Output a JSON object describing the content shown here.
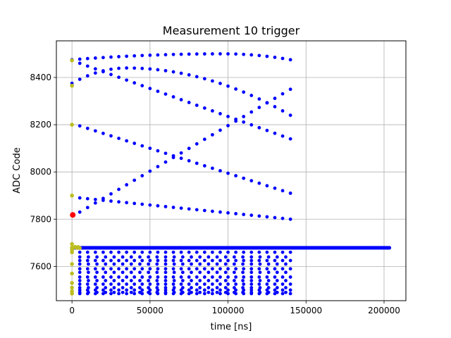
{
  "chart_data": {
    "type": "scatter",
    "title": "Measurement 10 trigger",
    "xlabel": "time [ns]",
    "ylabel": "ADC Code",
    "xlim": [
      -10000,
      214000
    ],
    "ylim": [
      7455,
      8555
    ],
    "grid": true,
    "x_ticks": [
      0,
      50000,
      100000,
      150000,
      200000
    ],
    "x_tick_labels": [
      "0",
      "50000",
      "100000",
      "150000",
      "200000"
    ],
    "y_ticks": [
      7600,
      7800,
      8000,
      8200,
      8400
    ],
    "y_tick_labels": [
      "7600",
      "7800",
      "8000",
      "8200",
      "8400"
    ],
    "series": [
      {
        "color": "#0000ff",
        "marker_radius_hint": "small",
        "description_curves": [
          {
            "kind": "arc",
            "x_start": 0,
            "x_end": 140000,
            "y_start": 8475,
            "y_peak": 8500,
            "x_peak": 97000,
            "y_end": 8475
          },
          {
            "kind": "arc",
            "x_start": 0,
            "x_end": 140000,
            "y_start": 8375,
            "y_peak": 8440,
            "x_peak": 35000,
            "y_end": 8240
          },
          {
            "kind": "line",
            "x_start": 5000,
            "x_end": 140000,
            "y_start": 8460,
            "y_end": 8140
          },
          {
            "kind": "line",
            "x_start": 5000,
            "x_end": 140000,
            "y_start": 8195,
            "y_end": 7910
          },
          {
            "kind": "line",
            "x_start": 5000,
            "x_end": 140000,
            "y_start": 7830,
            "y_end": 8350
          },
          {
            "kind": "line",
            "x_start": 5000,
            "x_end": 140000,
            "y_start": 7890,
            "y_end": 7800
          }
        ],
        "flat_level": 7679,
        "flat_x_end": 204000,
        "lower_levels": [
          7660,
          7640,
          7625,
          7610,
          7590,
          7575,
          7555,
          7540,
          7525,
          7510,
          7500,
          7490,
          7485
        ],
        "lower_x_end": 140000
      },
      {
        "color": "#bcbd22",
        "x": [
          0,
          0,
          0,
          0,
          0,
          0,
          0,
          0,
          0,
          0,
          0,
          0,
          0,
          0,
          1000,
          2000,
          3000,
          4000,
          5000
        ],
        "y": [
          8472,
          8365,
          8200,
          7900,
          7695,
          7680,
          7670,
          7660,
          7610,
          7570,
          7530,
          7510,
          7495,
          7485,
          7680,
          7683,
          7679,
          7682,
          7678
        ]
      },
      {
        "color": "#ff0000",
        "x": [
          500
        ],
        "y": [
          7818
        ]
      }
    ]
  }
}
